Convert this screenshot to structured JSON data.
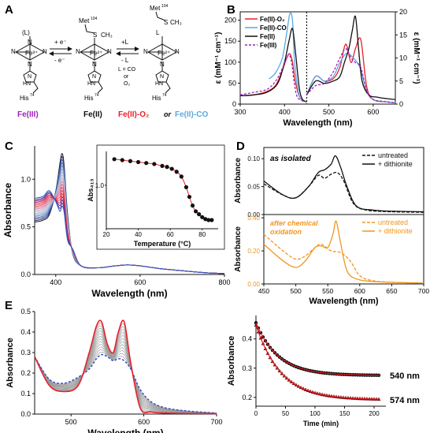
{
  "colors": {
    "red": "#e8202a",
    "blue": "#5aa9e0",
    "black": "#111111",
    "purple": "#a020c0",
    "orange": "#f0961e",
    "gray": "#9a9a9a"
  },
  "panelA": {
    "letter": "A",
    "arrow1_top": "+ e⁻",
    "arrow1_bottom": "- e⁻",
    "arrow2_top": "+L",
    "arrow2_bottom": "- L",
    "ligand_note": [
      "L = CO",
      "or",
      "O₂"
    ],
    "met": "Met",
    "met_num": "104",
    "sch3": "S",
    "ch3": "CH₃",
    "his": "His",
    "his_num": "74",
    "fe3": "Fe³⁺",
    "fe2": "Fe²⁺",
    "L": "L",
    "Lparen": "(L)",
    "label_fe3": "Fe(III)",
    "label_fe2": "Fe(II)",
    "label_o2": "Fe(II)-O₂",
    "label_or": "or",
    "label_co": "Fe(II)-CO"
  },
  "chart_data": [
    {
      "panel": "B",
      "type": "line",
      "xlabel": "Wavelength (nm)",
      "ylabel": "ε (mM⁻¹ cm⁻¹)",
      "y2label": "ε (mM⁻¹ cm⁻¹)",
      "xlim": [
        300,
        650
      ],
      "ylim": [
        0,
        220
      ],
      "y2lim": [
        0,
        20
      ],
      "xticks": [
        300,
        400,
        500,
        600
      ],
      "yticks": [
        0,
        50,
        100,
        150,
        200
      ],
      "y2ticks": [
        0,
        5,
        10,
        15,
        20
      ],
      "break_at": 450,
      "legend": [
        {
          "name": "Fe(II)-O₂",
          "color": "red"
        },
        {
          "name": "Fe(II)-CO",
          "color": "blue"
        },
        {
          "name": "Fe(II)",
          "color": "black"
        },
        {
          "name": "Fe(III)",
          "color": "purple",
          "dashed": true
        }
      ],
      "series_left": [
        {
          "name": "Fe(II)-O₂",
          "x": [
            300,
            330,
            360,
            380,
            395,
            405,
            412,
            418,
            425,
            435,
            450
          ],
          "y": [
            20,
            22,
            30,
            45,
            80,
            110,
            120,
            100,
            50,
            15,
            5
          ]
        },
        {
          "name": "Fe(II)-CO",
          "x": [
            365,
            380,
            395,
            405,
            412,
            418,
            422,
            428,
            435,
            450
          ],
          "y": [
            60,
            75,
            110,
            170,
            215,
            200,
            110,
            50,
            15,
            5
          ]
        },
        {
          "name": "Fe(II)",
          "x": [
            300,
            330,
            360,
            385,
            400,
            410,
            418,
            425,
            433,
            440,
            450
          ],
          "y": [
            20,
            22,
            28,
            50,
            100,
            150,
            180,
            120,
            40,
            12,
            5
          ]
        },
        {
          "name": "Fe(III)",
          "x": [
            300,
            330,
            360,
            380,
            395,
            405,
            410,
            416,
            422,
            430,
            450
          ],
          "y": [
            22,
            28,
            35,
            55,
            85,
            110,
            118,
            100,
            50,
            15,
            5
          ]
        }
      ],
      "series_right": [
        {
          "name": "Fe(II)-O₂",
          "x": [
            450,
            470,
            490,
            510,
            525,
            538,
            550,
            560,
            572,
            585,
            600,
            630,
            650
          ],
          "y": [
            2,
            6,
            5,
            5.5,
            8,
            13,
            9,
            12,
            14,
            4,
            1,
            0.5,
            0.3
          ]
        },
        {
          "name": "Fe(II)-CO",
          "x": [
            450,
            470,
            490,
            510,
            525,
            540,
            555,
            570,
            585,
            600,
            630,
            650
          ],
          "y": [
            2,
            6,
            5,
            6,
            9,
            11,
            10,
            8,
            3,
            1,
            0.5,
            0.3
          ]
        },
        {
          "name": "Fe(II)",
          "x": [
            450,
            470,
            490,
            510,
            525,
            535,
            545,
            553,
            560,
            567,
            575,
            590,
            610,
            630,
            650
          ],
          "y": [
            2,
            5,
            4.5,
            5,
            6,
            9,
            12,
            16,
            19,
            12,
            5,
            2,
            1.5,
            1.2,
            1
          ]
        },
        {
          "name": "Fe(III)",
          "x": [
            450,
            470,
            490,
            510,
            525,
            538,
            550,
            560,
            572,
            585,
            600,
            630,
            650
          ],
          "y": [
            2,
            4,
            4.5,
            7,
            10,
            12,
            10,
            9,
            8,
            3,
            1,
            0.5,
            0.3
          ]
        }
      ]
    },
    {
      "panel": "C",
      "type": "line",
      "xlabel": "Wavelength (nm)",
      "ylabel": "Absorbance",
      "xlim": [
        350,
        800
      ],
      "ylim": [
        0,
        1.35
      ],
      "xticks": [
        400,
        600,
        800
      ],
      "yticks": [
        0.0,
        0.5,
        1.0
      ],
      "n_traces": 18,
      "inset": {
        "type": "scatter",
        "xlabel": "Temperature (°C)",
        "ylabel": "Abs₄₁₃",
        "xlim": [
          20,
          90
        ],
        "ylim": [
          0.55,
          1.35
        ],
        "xticks": [
          20,
          40,
          60,
          80
        ],
        "yticks": [
          1.0
        ],
        "x": [
          25,
          30,
          35,
          40,
          45,
          50,
          55,
          58,
          61,
          64,
          67,
          70,
          72,
          74,
          76,
          78,
          80,
          82,
          84,
          86
        ],
        "y": [
          1.27,
          1.26,
          1.25,
          1.24,
          1.23,
          1.22,
          1.2,
          1.19,
          1.17,
          1.14,
          1.09,
          0.98,
          0.88,
          0.79,
          0.73,
          0.7,
          0.67,
          0.65,
          0.64,
          0.64
        ]
      }
    },
    {
      "panel": "D-top",
      "type": "line",
      "ylabel": "Absorbance",
      "annotation": "as isolated",
      "xlim": [
        450,
        700
      ],
      "ylim": [
        0,
        0.12
      ],
      "yticks": [
        0.0,
        0.05,
        0.1
      ],
      "legend": [
        {
          "name": "untreated",
          "dashed": true
        },
        {
          "name": "+ dithionite",
          "dashed": false
        }
      ],
      "series": [
        {
          "name": "untreated",
          "x": [
            450,
            480,
            500,
            520,
            535,
            545,
            555,
            565,
            575,
            590,
            610,
            650,
            700
          ],
          "y": [
            0.055,
            0.035,
            0.03,
            0.05,
            0.07,
            0.065,
            0.072,
            0.075,
            0.06,
            0.02,
            0.008,
            0.005,
            0.004
          ]
        },
        {
          "name": "+ dithionite",
          "x": [
            450,
            480,
            500,
            520,
            535,
            545,
            555,
            562,
            570,
            580,
            595,
            620,
            650,
            700
          ],
          "y": [
            0.06,
            0.035,
            0.03,
            0.05,
            0.075,
            0.08,
            0.09,
            0.105,
            0.085,
            0.05,
            0.015,
            0.008,
            0.006,
            0.005
          ]
        }
      ]
    },
    {
      "panel": "D-bottom",
      "type": "line",
      "xlabel": "Wavelength (nm)",
      "ylabel": "Absorbance",
      "annotation": "after chemical oxidation",
      "xlim": [
        450,
        700
      ],
      "ylim": [
        0,
        0.42
      ],
      "xticks": [
        450,
        500,
        550,
        600,
        650,
        700
      ],
      "yticks": [
        0.0,
        0.2,
        0.4
      ],
      "legend": [
        {
          "name": "untreated",
          "dashed": true
        },
        {
          "name": "+ dithionite",
          "dashed": false
        }
      ],
      "series": [
        {
          "name": "untreated",
          "x": [
            450,
            480,
            500,
            515,
            530,
            540,
            555,
            570,
            585,
            600,
            620,
            650,
            700
          ],
          "y": [
            0.3,
            0.2,
            0.15,
            0.17,
            0.22,
            0.24,
            0.2,
            0.19,
            0.14,
            0.05,
            0.02,
            0.01,
            0.005
          ]
        },
        {
          "name": "+ dithionite",
          "x": [
            450,
            480,
            500,
            515,
            530,
            540,
            550,
            558,
            563,
            570,
            580,
            595,
            620,
            650,
            700
          ],
          "y": [
            0.24,
            0.14,
            0.1,
            0.14,
            0.22,
            0.23,
            0.22,
            0.3,
            0.38,
            0.25,
            0.08,
            0.03,
            0.015,
            0.01,
            0.005
          ]
        }
      ]
    },
    {
      "panel": "E-left",
      "type": "line",
      "xlabel": "Wavelength (nm)",
      "ylabel": "Absorbance",
      "xlim": [
        450,
        700
      ],
      "ylim": [
        0,
        0.5
      ],
      "xticks": [
        500,
        600,
        700
      ],
      "yticks": [
        0.0,
        0.1,
        0.2,
        0.3,
        0.4,
        0.5
      ],
      "n_traces": 14
    },
    {
      "panel": "E-right",
      "type": "scatter",
      "xlabel": "Time (min)",
      "ylabel": "Absorbance",
      "xlim": [
        0,
        220
      ],
      "ylim": [
        0.17,
        0.48
      ],
      "xticks": [
        0,
        50,
        100,
        150,
        200
      ],
      "yticks": [
        0.2,
        0.3,
        0.4
      ],
      "series": [
        {
          "name": "540 nm",
          "a": 0.275,
          "b": 0.18,
          "tau": 38
        },
        {
          "name": "574 nm",
          "a": 0.192,
          "b": 0.255,
          "tau": 42
        }
      ]
    }
  ],
  "panel_letters": {
    "B": "B",
    "C": "C",
    "D": "D",
    "E": "E"
  }
}
